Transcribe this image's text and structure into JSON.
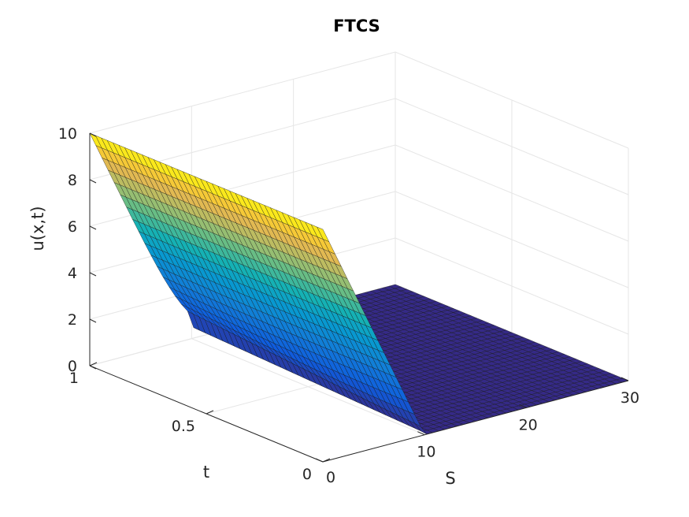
{
  "chart_data": {
    "type": "surface",
    "title": "FTCS",
    "xlabel": "S",
    "ylabel": "t",
    "zlabel": "u(x,t)",
    "xlim": [
      0,
      30
    ],
    "ylim": [
      0,
      1
    ],
    "zlim": [
      0,
      10
    ],
    "x_ticks": [
      "0",
      "10",
      "20",
      "30"
    ],
    "y_ticks": [
      "0",
      "0.5",
      "1"
    ],
    "z_ticks": [
      "0",
      "2",
      "4",
      "6",
      "8",
      "10"
    ],
    "strike": 10,
    "description_values": {
      "u_at_S0_all_t": 10,
      "u_at_S10_t0": 0,
      "u_at_S10_t1": 0.5,
      "u_for_S_above_12": 0
    },
    "grid": true,
    "colormap": "parula",
    "colors": {
      "low": "#352a87",
      "high": "#f9fb0e",
      "grid": "#e6e6e6",
      "axis": "#262626"
    }
  }
}
